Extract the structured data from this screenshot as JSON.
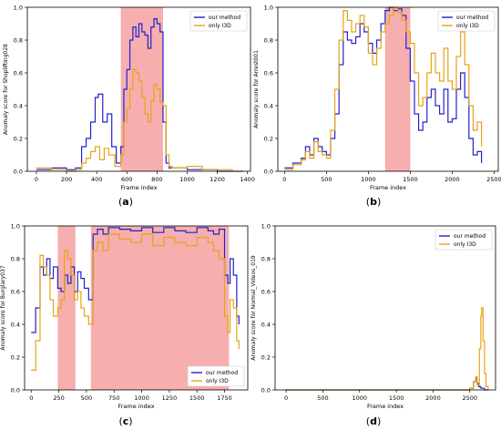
{
  "figure": {
    "colors": {
      "our_method": "#2222cc",
      "only_i3d": "#e8a317",
      "anomaly_region": "#f4a0a0"
    }
  },
  "chart_data": [
    {
      "id": "a",
      "type": "line",
      "panel_label": "a",
      "xlabel": "Frame index",
      "ylabel": "Anomaly score for Shoplifting028",
      "xlim": [
        -60,
        1420
      ],
      "ylim": [
        0,
        1.0
      ],
      "xticks": [
        0,
        200,
        400,
        600,
        800,
        1000,
        1200,
        1400
      ],
      "yticks": [
        0.0,
        0.2,
        0.4,
        0.6,
        0.8,
        1.0
      ],
      "legend": {
        "position": "top-right",
        "entries": [
          "our method",
          "only I3D"
        ]
      },
      "shaded_regions": [
        [
          560,
          840
        ]
      ],
      "series": [
        {
          "name": "our method",
          "x": [
            0,
            100,
            200,
            260,
            300,
            330,
            360,
            390,
            410,
            440,
            470,
            500,
            530,
            560,
            580,
            600,
            620,
            640,
            660,
            680,
            700,
            720,
            740,
            760,
            780,
            800,
            820,
            840,
            860,
            880,
            900,
            1000,
            1100,
            1200,
            1300,
            1370
          ],
          "y": [
            0.01,
            0.02,
            0.01,
            0.02,
            0.15,
            0.2,
            0.3,
            0.45,
            0.47,
            0.3,
            0.35,
            0.15,
            0.05,
            0.15,
            0.5,
            0.62,
            0.8,
            0.88,
            0.82,
            0.9,
            0.85,
            0.83,
            0.75,
            0.88,
            0.93,
            0.9,
            0.85,
            0.3,
            0.05,
            0.02,
            0.02,
            0.01,
            0.01,
            0.0,
            0.0,
            0.0
          ]
        },
        {
          "name": "only I3D",
          "x": [
            0,
            100,
            200,
            260,
            300,
            330,
            360,
            390,
            420,
            450,
            480,
            520,
            560,
            580,
            600,
            620,
            640,
            660,
            680,
            700,
            720,
            740,
            760,
            780,
            800,
            820,
            840,
            860,
            880,
            900,
            1000,
            1100,
            1200,
            1300,
            1370
          ],
          "y": [
            0.02,
            0.01,
            0.0,
            0.01,
            0.05,
            0.08,
            0.12,
            0.15,
            0.07,
            0.14,
            0.1,
            0.03,
            0.1,
            0.3,
            0.38,
            0.5,
            0.62,
            0.6,
            0.55,
            0.45,
            0.35,
            0.3,
            0.43,
            0.53,
            0.5,
            0.42,
            0.4,
            0.1,
            0.03,
            0.02,
            0.03,
            0.01,
            0.01,
            0.0,
            0.0
          ]
        }
      ]
    },
    {
      "id": "b",
      "type": "line",
      "panel_label": "b",
      "xlabel": "Frame index",
      "ylabel": "Anomaly score for Arrest001",
      "xlim": [
        -80,
        2550
      ],
      "ylim": [
        0,
        1.0
      ],
      "xticks": [
        0,
        500,
        1000,
        1500,
        2000,
        2500
      ],
      "yticks": [
        0.0,
        0.2,
        0.4,
        0.6,
        0.8,
        1.0
      ],
      "legend": {
        "position": "top-right",
        "entries": [
          "our method",
          "only I3D"
        ]
      },
      "shaded_regions": [
        [
          1200,
          1500
        ]
      ],
      "series": [
        {
          "name": "our method",
          "x": [
            0,
            100,
            200,
            250,
            300,
            350,
            400,
            450,
            500,
            550,
            600,
            650,
            700,
            750,
            800,
            850,
            900,
            950,
            1000,
            1050,
            1100,
            1150,
            1200,
            1250,
            1300,
            1350,
            1400,
            1450,
            1500,
            1550,
            1600,
            1650,
            1700,
            1750,
            1800,
            1850,
            1900,
            1950,
            2000,
            2050,
            2100,
            2150,
            2200,
            2250,
            2300,
            2350
          ],
          "y": [
            0.02,
            0.05,
            0.08,
            0.15,
            0.1,
            0.2,
            0.15,
            0.12,
            0.1,
            0.2,
            0.35,
            0.65,
            0.85,
            0.8,
            0.78,
            0.82,
            0.9,
            0.85,
            0.78,
            0.72,
            0.8,
            0.9,
            0.98,
            1.0,
            0.98,
            0.99,
            0.95,
            0.75,
            0.55,
            0.35,
            0.25,
            0.3,
            0.45,
            0.5,
            0.4,
            0.35,
            0.5,
            0.3,
            0.32,
            0.5,
            0.6,
            0.45,
            0.2,
            0.1,
            0.12,
            0.05
          ]
        },
        {
          "name": "only I3D",
          "x": [
            0,
            100,
            200,
            250,
            300,
            350,
            400,
            450,
            500,
            550,
            600,
            650,
            700,
            750,
            800,
            850,
            900,
            950,
            1000,
            1050,
            1100,
            1150,
            1200,
            1250,
            1300,
            1350,
            1400,
            1450,
            1500,
            1550,
            1600,
            1650,
            1700,
            1750,
            1800,
            1850,
            1900,
            1950,
            2000,
            2050,
            2100,
            2150,
            2200,
            2250,
            2300,
            2350
          ],
          "y": [
            0.01,
            0.04,
            0.07,
            0.12,
            0.08,
            0.18,
            0.12,
            0.1,
            0.08,
            0.25,
            0.5,
            0.8,
            0.98,
            0.92,
            0.85,
            0.9,
            0.95,
            0.88,
            0.72,
            0.65,
            0.75,
            0.85,
            0.9,
            0.95,
            1.0,
            0.97,
            0.92,
            0.85,
            0.78,
            0.6,
            0.4,
            0.45,
            0.6,
            0.72,
            0.6,
            0.55,
            0.75,
            0.55,
            0.5,
            0.7,
            0.85,
            0.65,
            0.4,
            0.25,
            0.3,
            0.15
          ]
        }
      ]
    },
    {
      "id": "c",
      "type": "line",
      "panel_label": "c",
      "xlabel": "Frame index",
      "ylabel": "Anomaly score for Burglary037",
      "xlim": [
        -60,
        1960
      ],
      "ylim": [
        0,
        1.0
      ],
      "xticks": [
        0,
        250,
        500,
        750,
        1000,
        1250,
        1500,
        1750,
        2000
      ],
      "yticks": [
        0.0,
        0.2,
        0.4,
        0.6,
        0.8,
        1.0
      ],
      "legend": {
        "position": "bottom-right",
        "entries": [
          "our method",
          "only I3D"
        ]
      },
      "shaded_regions": [
        [
          240,
          400
        ],
        [
          540,
          1790
        ]
      ],
      "series": [
        {
          "name": "our method",
          "x": [
            0,
            40,
            80,
            110,
            140,
            170,
            200,
            240,
            270,
            300,
            330,
            360,
            390,
            420,
            450,
            480,
            520,
            560,
            600,
            650,
            700,
            800,
            900,
            1000,
            1100,
            1200,
            1300,
            1400,
            1500,
            1600,
            1650,
            1700,
            1750,
            1780,
            1800,
            1830,
            1860,
            1880
          ],
          "y": [
            0.35,
            0.5,
            0.75,
            0.7,
            0.8,
            0.68,
            0.75,
            0.62,
            0.6,
            0.7,
            0.65,
            0.75,
            0.6,
            0.72,
            0.68,
            0.62,
            0.55,
            0.95,
            0.98,
            0.95,
            0.99,
            0.98,
            0.97,
            0.99,
            0.96,
            0.99,
            0.97,
            0.96,
            0.99,
            0.97,
            0.95,
            0.98,
            0.7,
            0.65,
            0.8,
            0.7,
            0.45,
            0.4
          ]
        },
        {
          "name": "only I3D",
          "x": [
            0,
            40,
            80,
            110,
            140,
            170,
            200,
            240,
            270,
            300,
            330,
            360,
            390,
            420,
            450,
            480,
            520,
            560,
            600,
            650,
            700,
            800,
            900,
            1000,
            1100,
            1200,
            1300,
            1400,
            1500,
            1600,
            1650,
            1700,
            1750,
            1780,
            1800,
            1830,
            1860,
            1880
          ],
          "y": [
            0.12,
            0.3,
            0.82,
            0.75,
            0.7,
            0.55,
            0.45,
            0.5,
            0.55,
            0.85,
            0.8,
            0.7,
            0.55,
            0.6,
            0.5,
            0.45,
            0.4,
            0.85,
            0.9,
            0.85,
            0.95,
            0.92,
            0.9,
            0.95,
            0.88,
            0.93,
            0.9,
            0.88,
            0.93,
            0.9,
            0.85,
            0.8,
            0.45,
            0.35,
            0.55,
            0.5,
            0.3,
            0.25
          ]
        }
      ]
    },
    {
      "id": "d",
      "type": "line",
      "panel_label": "d",
      "xlabel": "Frame index",
      "ylabel": "Anomaly score for Normal_Videos_019",
      "xlim": [
        -150,
        2850
      ],
      "ylim": [
        0,
        1.0
      ],
      "xticks": [
        0,
        500,
        1000,
        1500,
        2000,
        2500
      ],
      "yticks": [
        0.0,
        0.2,
        0.4,
        0.6,
        0.8,
        1.0
      ],
      "legend": {
        "position": "top-right",
        "entries": [
          "our method",
          "only I3D"
        ]
      },
      "shaded_regions": [],
      "series": [
        {
          "name": "our method",
          "x": [
            0,
            500,
            1000,
            1500,
            2000,
            2400,
            2500,
            2550,
            2580,
            2600,
            2620,
            2650,
            2700,
            2750
          ],
          "y": [
            0.0,
            0.0,
            0.0,
            0.0,
            0.0,
            0.0,
            0.01,
            0.05,
            0.07,
            0.04,
            0.02,
            0.01,
            0.0,
            0.0
          ]
        },
        {
          "name": "only I3D",
          "x": [
            0,
            500,
            1000,
            1500,
            2000,
            2400,
            2500,
            2550,
            2580,
            2600,
            2630,
            2650,
            2660,
            2680,
            2700,
            2720,
            2750
          ],
          "y": [
            0.0,
            0.0,
            0.0,
            0.0,
            0.0,
            0.0,
            0.01,
            0.05,
            0.08,
            0.03,
            0.25,
            0.45,
            0.5,
            0.3,
            0.1,
            0.02,
            0.0
          ]
        }
      ]
    }
  ]
}
